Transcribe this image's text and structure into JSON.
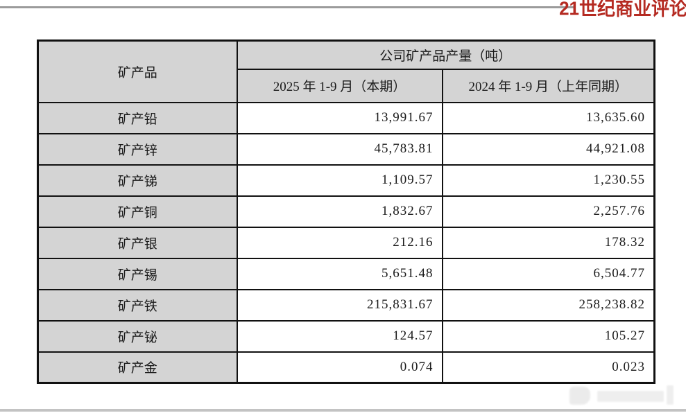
{
  "branding": {
    "logo_text": "21世纪商业评论",
    "logo_color": "#b52b22"
  },
  "colors": {
    "header_fill": "#d4d4d4",
    "table_border": "#111111",
    "top_rule": "#9b9b9b",
    "bottom_rule": "#c3c3c3"
  },
  "table": {
    "product_header": "矿产品",
    "group_header": "公司矿产品产量（吨）",
    "period_headers": [
      "2025 年 1-9 月（本期）",
      "2024 年 1-9 月（上年同期）"
    ],
    "rows": [
      {
        "label": "矿产铅",
        "current": "13,991.67",
        "prior": "13,635.60"
      },
      {
        "label": "矿产锌",
        "current": "45,783.81",
        "prior": "44,921.08"
      },
      {
        "label": "矿产锑",
        "current": "1,109.57",
        "prior": "1,230.55"
      },
      {
        "label": "矿产铜",
        "current": "1,832.67",
        "prior": "2,257.76"
      },
      {
        "label": "矿产银",
        "current": "212.16",
        "prior": "178.32"
      },
      {
        "label": "矿产锡",
        "current": "5,651.48",
        "prior": "6,504.77"
      },
      {
        "label": "矿产铁",
        "current": "215,831.67",
        "prior": "258,238.82"
      },
      {
        "label": "矿产铋",
        "current": "124.57",
        "prior": "105.27"
      },
      {
        "label": "矿产金",
        "current": "0.074",
        "prior": "0.023"
      }
    ]
  }
}
